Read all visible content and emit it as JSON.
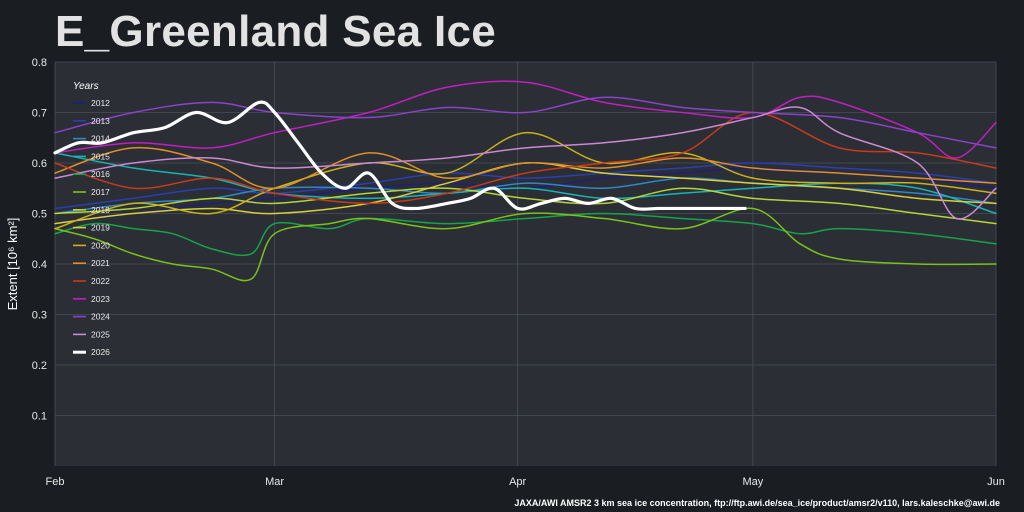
{
  "chart_data": {
    "type": "line",
    "title": "E_Greenland Sea Ice",
    "ylabel": "Extent [10⁶ km²]",
    "xlabel": "",
    "x_tick_labels": [
      "Feb",
      "Mar",
      "Apr",
      "May",
      "Jun"
    ],
    "x_tick_days": [
      0,
      28,
      59,
      89,
      120
    ],
    "xlim": [
      0,
      120
    ],
    "ylim": [
      0.0,
      0.8
    ],
    "y_ticks": [
      0.1,
      0.2,
      0.3,
      0.4,
      0.5,
      0.6,
      0.7,
      0.8
    ],
    "grid": true,
    "legend_title": "Years",
    "legend_placement": "top-left",
    "source": "JAXA/AWI AMSR2 3 km sea ice concentration, ftp://ftp.awi.de/sea_ice/product/amsr2/v110, lars.kaleschke@awi.de",
    "series": [
      {
        "name": "2012",
        "color": "#1f1f7a",
        "x": [
          0,
          10,
          20,
          28,
          40,
          50,
          60,
          70,
          80,
          89,
          100,
          110,
          120
        ],
        "y": [
          0.48,
          0.5,
          0.52,
          0.53,
          0.55,
          0.56,
          0.55,
          0.57,
          0.58,
          0.59,
          0.58,
          0.57,
          0.55
        ]
      },
      {
        "name": "2013",
        "color": "#2a3fb0",
        "x": [
          0,
          10,
          20,
          28,
          40,
          50,
          60,
          70,
          80,
          89,
          100,
          110,
          120
        ],
        "y": [
          0.51,
          0.53,
          0.55,
          0.54,
          0.56,
          0.58,
          0.57,
          0.58,
          0.59,
          0.6,
          0.59,
          0.58,
          0.56
        ]
      },
      {
        "name": "2014",
        "color": "#2f86c9",
        "x": [
          0,
          10,
          20,
          28,
          40,
          50,
          60,
          70,
          80,
          89,
          100,
          110,
          120
        ],
        "y": [
          0.5,
          0.52,
          0.53,
          0.55,
          0.55,
          0.54,
          0.56,
          0.55,
          0.57,
          0.56,
          0.55,
          0.54,
          0.52
        ]
      },
      {
        "name": "2015",
        "color": "#19b3b3",
        "x": [
          0,
          10,
          20,
          28,
          40,
          50,
          60,
          70,
          80,
          89,
          100,
          110,
          120
        ],
        "y": [
          0.62,
          0.59,
          0.57,
          0.54,
          0.53,
          0.54,
          0.55,
          0.53,
          0.54,
          0.55,
          0.56,
          0.55,
          0.5
        ]
      },
      {
        "name": "2016",
        "color": "#16a34a",
        "x": [
          0,
          5,
          10,
          15,
          20,
          25,
          28,
          35,
          40,
          50,
          60,
          70,
          80,
          89,
          95,
          100,
          110,
          120
        ],
        "y": [
          0.46,
          0.48,
          0.47,
          0.46,
          0.43,
          0.42,
          0.48,
          0.47,
          0.49,
          0.48,
          0.49,
          0.5,
          0.49,
          0.48,
          0.46,
          0.47,
          0.46,
          0.44
        ]
      },
      {
        "name": "2017",
        "color": "#7bc11b",
        "x": [
          0,
          5,
          10,
          15,
          20,
          25,
          28,
          35,
          40,
          50,
          60,
          70,
          80,
          89,
          95,
          100,
          110,
          120
        ],
        "y": [
          0.47,
          0.45,
          0.42,
          0.4,
          0.39,
          0.37,
          0.46,
          0.48,
          0.49,
          0.47,
          0.5,
          0.49,
          0.47,
          0.51,
          0.44,
          0.41,
          0.4,
          0.4
        ]
      },
      {
        "name": "2018",
        "color": "#b7d43a",
        "x": [
          0,
          10,
          20,
          28,
          40,
          50,
          60,
          70,
          80,
          89,
          100,
          110,
          120
        ],
        "y": [
          0.5,
          0.51,
          0.53,
          0.52,
          0.54,
          0.55,
          0.53,
          0.52,
          0.55,
          0.53,
          0.52,
          0.5,
          0.48
        ]
      },
      {
        "name": "2019",
        "color": "#d9cf3a",
        "x": [
          0,
          10,
          20,
          28,
          40,
          50,
          60,
          70,
          80,
          89,
          100,
          110,
          120
        ],
        "y": [
          0.48,
          0.5,
          0.51,
          0.5,
          0.52,
          0.56,
          0.6,
          0.58,
          0.57,
          0.56,
          0.55,
          0.53,
          0.52
        ]
      },
      {
        "name": "2020",
        "color": "#c9b21a",
        "x": [
          0,
          10,
          20,
          28,
          40,
          50,
          60,
          70,
          80,
          89,
          100,
          110,
          120
        ],
        "y": [
          0.47,
          0.52,
          0.5,
          0.55,
          0.6,
          0.58,
          0.66,
          0.6,
          0.62,
          0.57,
          0.56,
          0.56,
          0.54
        ]
      },
      {
        "name": "2021",
        "color": "#e0902a",
        "x": [
          0,
          10,
          20,
          28,
          40,
          50,
          60,
          70,
          80,
          89,
          100,
          110,
          120
        ],
        "y": [
          0.58,
          0.63,
          0.6,
          0.55,
          0.62,
          0.57,
          0.6,
          0.59,
          0.61,
          0.59,
          0.58,
          0.57,
          0.56
        ]
      },
      {
        "name": "2022",
        "color": "#c83a1a",
        "x": [
          0,
          10,
          20,
          28,
          40,
          50,
          60,
          70,
          80,
          89,
          100,
          110,
          120
        ],
        "y": [
          0.6,
          0.55,
          0.57,
          0.54,
          0.52,
          0.54,
          0.58,
          0.6,
          0.62,
          0.7,
          0.63,
          0.62,
          0.59
        ]
      },
      {
        "name": "2023",
        "color": "#c21ec2",
        "x": [
          0,
          10,
          20,
          28,
          40,
          50,
          60,
          70,
          80,
          89,
          95,
          100,
          110,
          115,
          120
        ],
        "y": [
          0.62,
          0.64,
          0.63,
          0.66,
          0.7,
          0.75,
          0.76,
          0.72,
          0.7,
          0.69,
          0.73,
          0.72,
          0.66,
          0.61,
          0.68
        ]
      },
      {
        "name": "2024",
        "color": "#8a43c9",
        "x": [
          0,
          10,
          20,
          28,
          40,
          50,
          60,
          70,
          80,
          89,
          100,
          110,
          120
        ],
        "y": [
          0.66,
          0.7,
          0.72,
          0.7,
          0.69,
          0.71,
          0.7,
          0.73,
          0.71,
          0.7,
          0.69,
          0.66,
          0.63
        ]
      },
      {
        "name": "2025",
        "color": "#c98ad1",
        "x": [
          0,
          10,
          20,
          28,
          40,
          50,
          60,
          70,
          80,
          89,
          95,
          100,
          110,
          115,
          120
        ],
        "y": [
          0.57,
          0.6,
          0.61,
          0.59,
          0.6,
          0.61,
          0.63,
          0.64,
          0.66,
          0.69,
          0.71,
          0.66,
          0.6,
          0.49,
          0.55
        ]
      },
      {
        "name": "2026",
        "color": "#ffffff",
        "x": [
          0,
          3,
          6,
          10,
          14,
          18,
          22,
          26,
          28,
          31,
          34,
          37,
          40,
          43,
          46,
          50,
          53,
          56,
          59,
          62,
          65,
          68,
          71,
          74,
          77,
          80,
          83,
          86,
          88
        ],
        "y": [
          0.62,
          0.64,
          0.64,
          0.66,
          0.67,
          0.7,
          0.68,
          0.72,
          0.7,
          0.64,
          0.58,
          0.55,
          0.58,
          0.52,
          0.51,
          0.52,
          0.53,
          0.55,
          0.51,
          0.52,
          0.53,
          0.52,
          0.53,
          0.51,
          0.51,
          0.51,
          0.51,
          0.51,
          0.51
        ]
      }
    ]
  }
}
